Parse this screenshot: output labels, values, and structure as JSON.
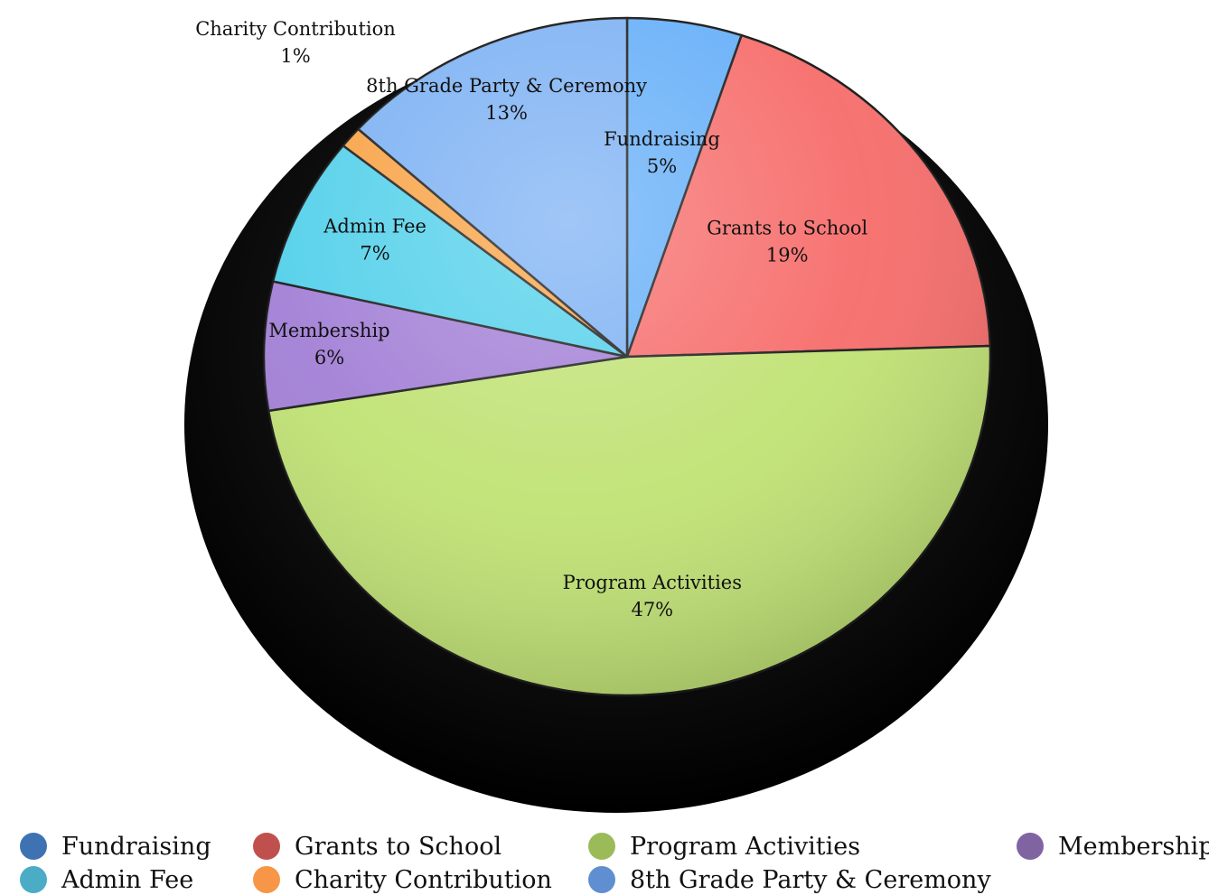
{
  "chart_data": {
    "type": "pie",
    "start_angle_deg": 0,
    "direction": "clockwise",
    "slices": [
      {
        "name": "Fundraising",
        "value": 5,
        "label_pct": "5%",
        "fill": "#64aef8",
        "legend_color": "#3f72b3"
      },
      {
        "name": "Grants to School",
        "value": 19,
        "label_pct": "19%",
        "fill": "#f66c6a",
        "legend_color": "#c0504d"
      },
      {
        "name": "Program Activities",
        "value": 47,
        "label_pct": "47%",
        "fill": "#c0e274",
        "legend_color": "#9bbb59"
      },
      {
        "name": "Membership",
        "value": 6,
        "label_pct": "6%",
        "fill": "#a27fd6",
        "legend_color": "#8064a2"
      },
      {
        "name": "Admin Fee",
        "value": 7,
        "label_pct": "7%",
        "fill": "#52d0ea",
        "legend_color": "#4bacc6"
      },
      {
        "name": "Charity Contribution",
        "value": 1,
        "label_pct": "1%",
        "fill": "#f8a244",
        "legend_color": "#f79646"
      },
      {
        "name": "8th Grade Party & Ceremony",
        "value": 13,
        "label_pct": "13%",
        "fill": "#7bb0f3",
        "legend_color": "#5f8fd0"
      }
    ],
    "legend": {
      "placement": "bottom",
      "columns": [
        [
          "Fundraising",
          "Admin Fee"
        ],
        [
          "Grants to School",
          "Charity Contribution"
        ],
        [
          "Program Activities",
          "8th Grade Party & Ceremony"
        ],
        [
          "Membership"
        ]
      ]
    }
  }
}
